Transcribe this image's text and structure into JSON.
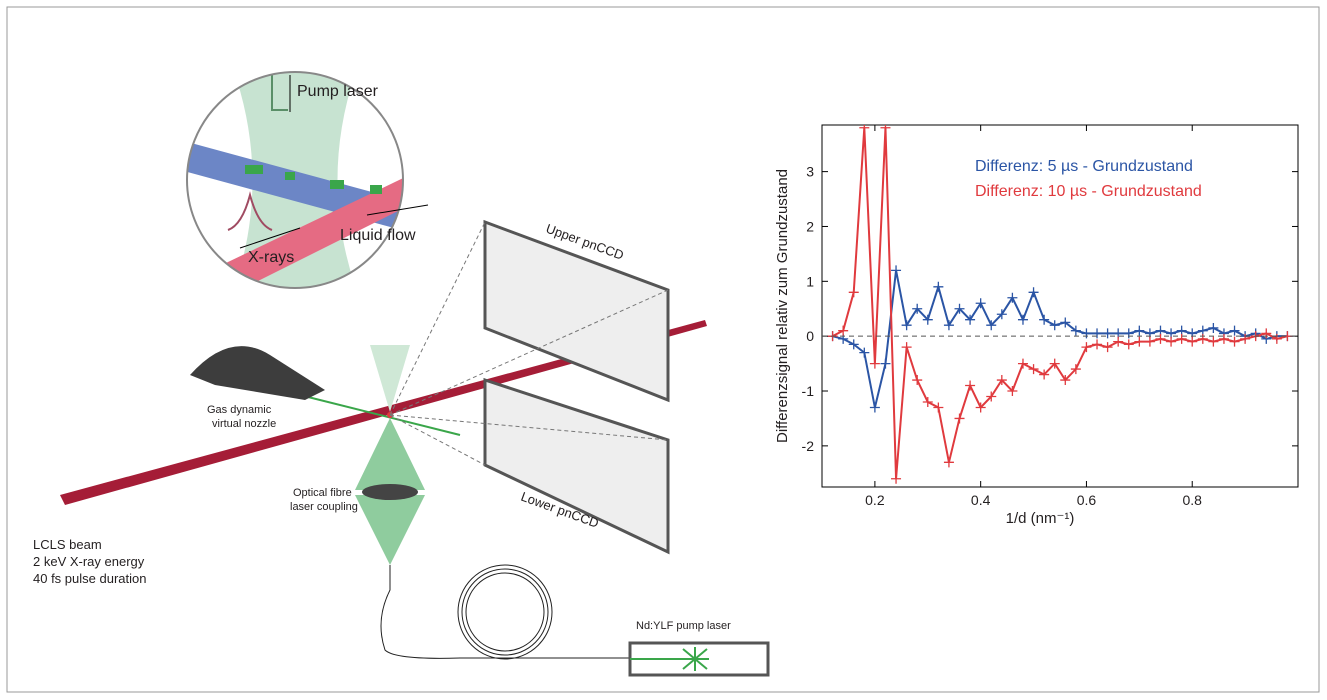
{
  "diagram": {
    "pump_laser": "Pump laser",
    "x_rays": "X-rays",
    "liquid_flow": "Liquid flow",
    "upper_detector": "Upper pnCCD",
    "lower_detector": "Lower pnCCD",
    "nozzle": [
      "Gas dynamic",
      "virtual nozzle"
    ],
    "fibre": [
      "Optical fibre",
      "laser coupling"
    ],
    "lcls": [
      "LCLS beam",
      "2 keV X-ray energy",
      "40 fs pulse duration"
    ],
    "nd_yag": "Nd:YLF pump laser"
  },
  "chart_data": {
    "type": "line",
    "x_label": "1/d (nm⁻¹)",
    "y_label": "Differenzsignal relativ zum Grundzustand",
    "x": [
      0.12,
      0.14,
      0.16,
      0.18,
      0.2,
      0.22,
      0.24,
      0.26,
      0.28,
      0.3,
      0.32,
      0.34,
      0.36,
      0.38,
      0.4,
      0.42,
      0.44,
      0.46,
      0.48,
      0.5,
      0.52,
      0.54,
      0.56,
      0.58,
      0.6,
      0.62,
      0.64,
      0.66,
      0.68,
      0.7,
      0.72,
      0.74,
      0.76,
      0.78,
      0.8,
      0.82,
      0.84,
      0.86,
      0.88,
      0.9,
      0.92,
      0.94,
      0.96,
      0.98
    ],
    "series": [
      {
        "name": "Differenz: 5   µs - Grundzustand",
        "color": "#2b55a5",
        "values": [
          0,
          -0.05,
          -0.15,
          -0.3,
          -1.3,
          -0.5,
          1.2,
          0.2,
          0.5,
          0.3,
          0.9,
          0.2,
          0.5,
          0.3,
          0.6,
          0.2,
          0.4,
          0.7,
          0.3,
          0.8,
          0.3,
          0.2,
          0.25,
          0.1,
          0.05,
          0.05,
          0.05,
          0.05,
          0.05,
          0.1,
          0.05,
          0.1,
          0.05,
          0.1,
          0.05,
          0.1,
          0.15,
          0.05,
          0.1,
          0,
          0.05,
          -0.05,
          0,
          0
        ]
      },
      {
        "name": "Differenz: 10   µs - Grundzustand",
        "color": "#e03a3e",
        "values": [
          0,
          0.1,
          0.8,
          3.8,
          -0.5,
          3.8,
          -2.6,
          -0.2,
          -0.8,
          -1.2,
          -1.3,
          -2.3,
          -1.5,
          -0.9,
          -1.3,
          -1.1,
          -0.8,
          -1.0,
          -0.5,
          -0.6,
          -0.7,
          -0.5,
          -0.8,
          -0.6,
          -0.2,
          -0.15,
          -0.2,
          -0.1,
          -0.15,
          -0.1,
          -0.1,
          -0.05,
          -0.1,
          -0.05,
          -0.1,
          -0.05,
          -0.1,
          -0.05,
          -0.1,
          -0.05,
          0,
          0.05,
          -0.05,
          0
        ]
      }
    ],
    "xlim": [
      0.1,
      1.0
    ],
    "ylim": [
      -2.75,
      3.85
    ],
    "xticks": [
      0.2,
      0.4,
      0.6,
      0.8
    ],
    "yticks": [
      -2,
      -1,
      0,
      1,
      2,
      3
    ]
  }
}
